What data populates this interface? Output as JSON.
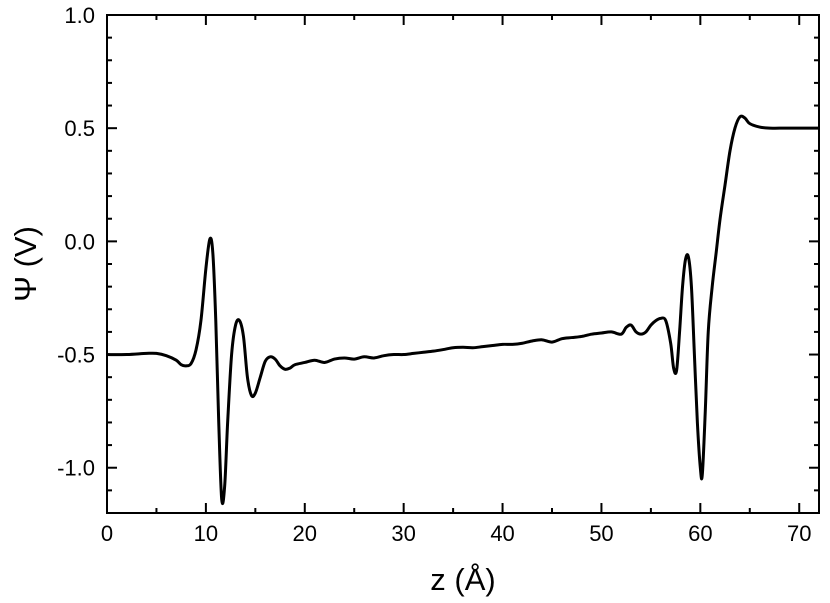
{
  "chart_data": {
    "type": "line",
    "xlabel": "z (Å)",
    "ylabel": "Ψ (V)",
    "xlim": [
      0,
      72
    ],
    "ylim": [
      -1.2,
      1.0
    ],
    "grid": false,
    "x_ticks": [
      0,
      10,
      20,
      30,
      40,
      50,
      60,
      70
    ],
    "x_tick_labels": [
      "0",
      "10",
      "20",
      "30",
      "40",
      "50",
      "60",
      "70"
    ],
    "y_ticks": [
      1.0,
      0.5,
      0.0,
      -0.5,
      -1.0
    ],
    "y_tick_labels": [
      "1.0",
      "0.5",
      "0.0",
      "-0.5",
      "-1.0"
    ],
    "series": [
      {
        "color": "#000000",
        "x": [
          0,
          2,
          4,
          5,
          6,
          7,
          7.5,
          8,
          8.5,
          9,
          9.5,
          10,
          10.4,
          10.7,
          11,
          11.3,
          11.6,
          11.9,
          12.2,
          12.6,
          13,
          13.4,
          13.8,
          14.2,
          14.6,
          15,
          15.5,
          16,
          16.5,
          17,
          17.5,
          18,
          18.5,
          19,
          20,
          21,
          22,
          23,
          24,
          25,
          26,
          27,
          28,
          29,
          30,
          31,
          32,
          33,
          34,
          35,
          36,
          37,
          38,
          39,
          40,
          41,
          42,
          43,
          44,
          45,
          46,
          47,
          48,
          49,
          50,
          51,
          52,
          52.5,
          53,
          53.5,
          54,
          54.5,
          55,
          55.5,
          56,
          56.5,
          57,
          57.3,
          57.6,
          57.9,
          58.2,
          58.5,
          58.8,
          59.1,
          59.4,
          59.7,
          60,
          60.2,
          60.5,
          60.8,
          61.2,
          61.6,
          62,
          62.5,
          63,
          63.5,
          64,
          64.5,
          65,
          66,
          67,
          68,
          70,
          72
        ],
        "y": [
          -0.5,
          -0.5,
          -0.495,
          -0.495,
          -0.505,
          -0.525,
          -0.545,
          -0.55,
          -0.54,
          -0.48,
          -0.35,
          -0.12,
          0.01,
          -0.05,
          -0.35,
          -0.8,
          -1.14,
          -1.08,
          -0.8,
          -0.5,
          -0.37,
          -0.35,
          -0.42,
          -0.6,
          -0.68,
          -0.67,
          -0.6,
          -0.53,
          -0.51,
          -0.52,
          -0.55,
          -0.565,
          -0.56,
          -0.545,
          -0.535,
          -0.525,
          -0.535,
          -0.52,
          -0.515,
          -0.52,
          -0.51,
          -0.515,
          -0.505,
          -0.5,
          -0.5,
          -0.495,
          -0.49,
          -0.485,
          -0.478,
          -0.47,
          -0.468,
          -0.47,
          -0.465,
          -0.46,
          -0.455,
          -0.455,
          -0.45,
          -0.44,
          -0.435,
          -0.445,
          -0.43,
          -0.425,
          -0.42,
          -0.41,
          -0.405,
          -0.4,
          -0.41,
          -0.38,
          -0.37,
          -0.4,
          -0.41,
          -0.4,
          -0.37,
          -0.35,
          -0.34,
          -0.35,
          -0.45,
          -0.56,
          -0.57,
          -0.4,
          -0.2,
          -0.08,
          -0.07,
          -0.2,
          -0.5,
          -0.8,
          -1.0,
          -1.03,
          -0.75,
          -0.4,
          -0.2,
          -0.05,
          0.1,
          0.25,
          0.4,
          0.5,
          0.55,
          0.545,
          0.52,
          0.505,
          0.5,
          0.5,
          0.5,
          0.5
        ]
      }
    ]
  }
}
